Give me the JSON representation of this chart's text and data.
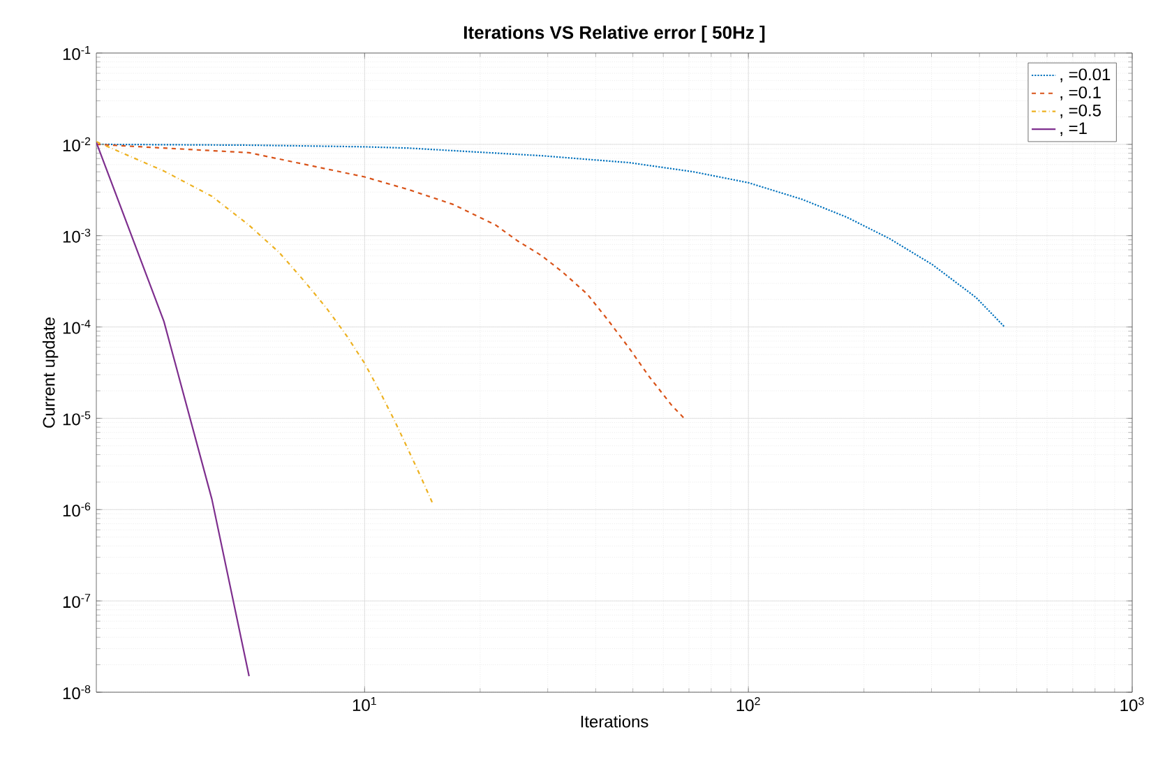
{
  "chart_data": {
    "type": "line",
    "title": "Iterations VS Relative error [ 50Hz ]",
    "xlabel": "Iterations",
    "ylabel": "Current update",
    "log": "xy",
    "grid": true,
    "legend": "top right",
    "xlim": [
      2,
      1000
    ],
    "xticks": [
      {
        "value": 10,
        "label": "10$^{1}$"
      },
      {
        "value": 100,
        "label": "10$^{2}$"
      },
      {
        "value": 1000,
        "label": "10$^{3}$"
      }
    ],
    "ylim": [
      1e-08,
      0.1
    ],
    "yticks": [
      {
        "value": 1e-08,
        "label": "10$^{-8}$"
      },
      {
        "value": 1e-07,
        "label": "10$^{-7}$"
      },
      {
        "value": 1e-06,
        "label": "10$^{-6}$"
      },
      {
        "value": 1e-05,
        "label": "10$^{-5}$"
      },
      {
        "value": 0.0001,
        "label": "10$^{-4}$"
      },
      {
        "value": 0.001,
        "label": "10$^{-3}$"
      },
      {
        "value": 0.01,
        "label": "10$^{-2}$"
      },
      {
        "value": 0.1,
        "label": "10$^{-1}$"
      }
    ],
    "series": [
      {
        "name": ", =0.01",
        "color": "#0072bd",
        "line_style": "dotted",
        "x": [
          2,
          5,
          10,
          13,
          29,
          49,
          72,
          100,
          138,
          180,
          233,
          302,
          392,
          465
        ],
        "values": [
          0.01,
          0.0098,
          0.0094,
          0.0091,
          0.0075,
          0.0063,
          0.005,
          0.0038,
          0.0025,
          0.0016,
          0.00093,
          0.00048,
          0.00021,
          0.0001
        ]
      },
      {
        "name": ", =0.1",
        "color": "#d95319",
        "line_style": "dashed",
        "x": [
          2,
          5,
          10,
          13,
          17,
          22,
          25,
          29,
          33,
          38,
          43,
          49,
          55,
          63,
          68
        ],
        "values": [
          0.01,
          0.0081,
          0.0044,
          0.0032,
          0.0022,
          0.0013,
          0.00088,
          0.0006,
          0.00039,
          0.00023,
          0.00012,
          5.8e-05,
          2.9e-05,
          1.4e-05,
          1e-05
        ]
      },
      {
        "name": ", =0.5",
        "color": "#edb120",
        "line_style": "dashdot",
        "x": [
          2,
          3,
          4,
          5,
          6,
          7,
          8,
          9,
          10,
          11,
          12,
          13,
          14,
          15
        ],
        "values": [
          0.0107,
          0.0051,
          0.0027,
          0.0013,
          0.00065,
          0.00031,
          0.000156,
          7.9e-05,
          4e-05,
          1.9e-05,
          9.2e-06,
          4.5e-06,
          2.3e-06,
          1.2e-06
        ]
      },
      {
        "name": ", =1",
        "color": "#7e2f8e",
        "line_style": "solid",
        "x": [
          2,
          3,
          4,
          5
        ],
        "values": [
          0.0105,
          0.000115,
          1.3e-06,
          1.5e-08
        ]
      }
    ]
  }
}
